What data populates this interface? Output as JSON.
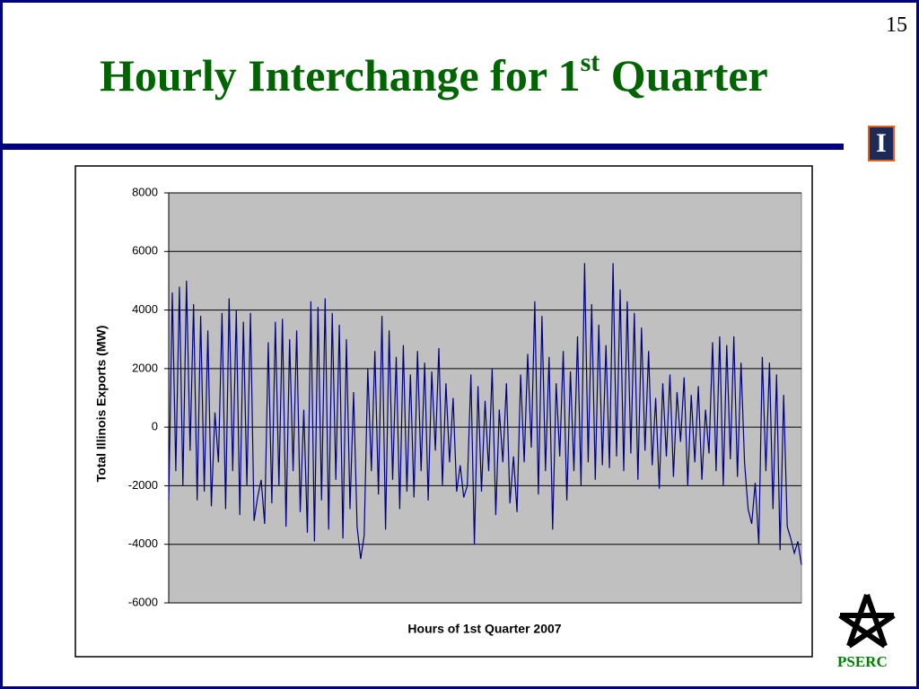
{
  "page_number": "15",
  "title": {
    "main": "Hourly Interchange for 1",
    "sup": "st",
    "rest": " Quarter"
  },
  "logo": "I",
  "footer_logo": "PSERC",
  "chart_data": {
    "type": "line",
    "ylabel": "Total Illinois Exports (MW)",
    "xlabel": "Hours of 1st Quarter 2007",
    "ylim": [
      -6000,
      8000
    ],
    "yticks": [
      -6000,
      -4000,
      -2000,
      0,
      2000,
      4000,
      6000,
      8000
    ],
    "grid": true,
    "series": [
      {
        "name": "Total Illinois Exports",
        "color": "#000080",
        "values": [
          -2500,
          4600,
          -1500,
          4800,
          -2000,
          5000,
          -800,
          4200,
          -2500,
          3800,
          -2200,
          3300,
          -2700,
          500,
          -1200,
          3900,
          -2800,
          4400,
          -1500,
          4000,
          -3000,
          3600,
          -2000,
          3900,
          -3200,
          -2400,
          -1800,
          -3300,
          2900,
          -2600,
          3600,
          -2000,
          3700,
          -3400,
          3000,
          -1500,
          3300,
          -2900,
          600,
          -3600,
          4300,
          -3900,
          4100,
          -2500,
          4400,
          -3500,
          3900,
          -1800,
          3500,
          -3800,
          3000,
          -2800,
          1200,
          -3400,
          -4500,
          -3700,
          2000,
          -1500,
          2600,
          -2300,
          3800,
          -3500,
          3300,
          -1800,
          2400,
          -2800,
          2800,
          -2200,
          1800,
          -2400,
          2600,
          -1500,
          2200,
          -2500,
          1900,
          -800,
          2700,
          -2000,
          1500,
          -1200,
          1000,
          -2200,
          -1300,
          -2400,
          -2000,
          1800,
          -4000,
          1400,
          -2200,
          900,
          -1500,
          2000,
          -3000,
          600,
          -1200,
          1500,
          -2600,
          -1000,
          -2900,
          1800,
          -1200,
          2500,
          -700,
          4300,
          -2300,
          3800,
          -1500,
          2400,
          -3500,
          1500,
          -1000,
          2600,
          -2500,
          1900,
          -1500,
          3100,
          -2000,
          5600,
          -1200,
          4200,
          -1800,
          3500,
          -1300,
          2800,
          -1400,
          5600,
          -1000,
          4700,
          -1500,
          4300,
          -900,
          3900,
          -1800,
          3400,
          -800,
          2600,
          -1300,
          1000,
          -2100,
          1500,
          -1000,
          1800,
          -1700,
          1200,
          -500,
          1700,
          -2000,
          1100,
          -1200,
          1400,
          -1800,
          600,
          -900,
          2900,
          -1500,
          3100,
          -2000,
          2800,
          -1100,
          3100,
          -1700,
          2200,
          -1200,
          -2800,
          -3300,
          -1900,
          -4000,
          2400,
          -1500,
          2200,
          -2800,
          1800,
          -4200,
          1100,
          -3400,
          -3800,
          -4300,
          -3900,
          -4700
        ]
      }
    ]
  }
}
